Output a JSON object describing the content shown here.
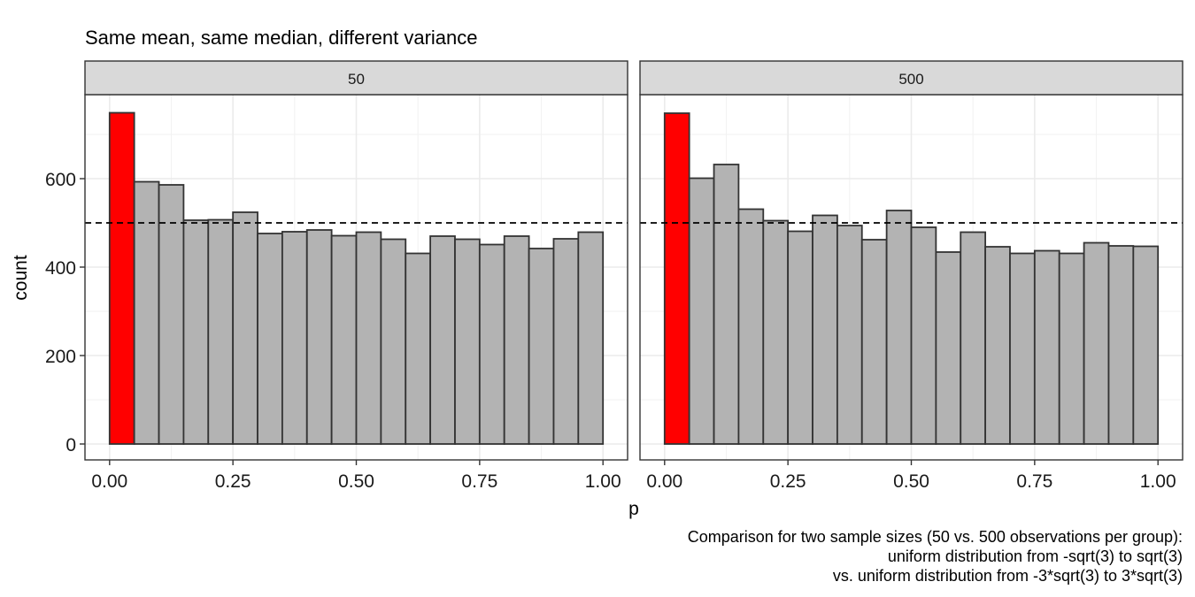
{
  "chart_data": {
    "type": "bar",
    "title": "Same mean, same median, different variance",
    "xlabel": "p",
    "ylabel": "count",
    "xlim": [
      0,
      1
    ],
    "ylim": [
      0,
      750
    ],
    "x_ticks": [
      "0.00",
      "0.25",
      "0.50",
      "0.75",
      "1.00"
    ],
    "y_ticks": [
      "0",
      "200",
      "400",
      "600"
    ],
    "reference_line": {
      "y": 500,
      "style": "dashed"
    },
    "grid": true,
    "bin_width": 0.05,
    "highlight_color": "#ff0000",
    "bar_color": "#b3b3b3",
    "bar_outline_color": "#333333",
    "panels": [
      {
        "strip_label": "50",
        "bins": [
          0.025,
          0.075,
          0.125,
          0.175,
          0.225,
          0.275,
          0.325,
          0.375,
          0.425,
          0.475,
          0.525,
          0.575,
          0.625,
          0.675,
          0.725,
          0.775,
          0.825,
          0.875,
          0.925,
          0.975
        ],
        "values": [
          749,
          593,
          586,
          506,
          507,
          524,
          476,
          480,
          484,
          471,
          479,
          463,
          431,
          470,
          463,
          451,
          470,
          442,
          464,
          479
        ],
        "highlight_index": 0
      },
      {
        "strip_label": "500",
        "bins": [
          0.025,
          0.075,
          0.125,
          0.175,
          0.225,
          0.275,
          0.325,
          0.375,
          0.425,
          0.475,
          0.525,
          0.575,
          0.625,
          0.675,
          0.725,
          0.775,
          0.825,
          0.875,
          0.925,
          0.975
        ],
        "values": [
          748,
          601,
          632,
          531,
          505,
          481,
          517,
          494,
          462,
          528,
          490,
          434,
          479,
          446,
          431,
          437,
          431,
          455,
          448,
          447
        ],
        "highlight_index": 0
      }
    ]
  },
  "caption": {
    "line1": "Comparison for two sample sizes (50 vs. 500 observations per group):",
    "line2": "uniform distribution from -sqrt(3) to sqrt(3)",
    "line3": "vs. uniform distribution from -3*sqrt(3) to 3*sqrt(3)"
  }
}
